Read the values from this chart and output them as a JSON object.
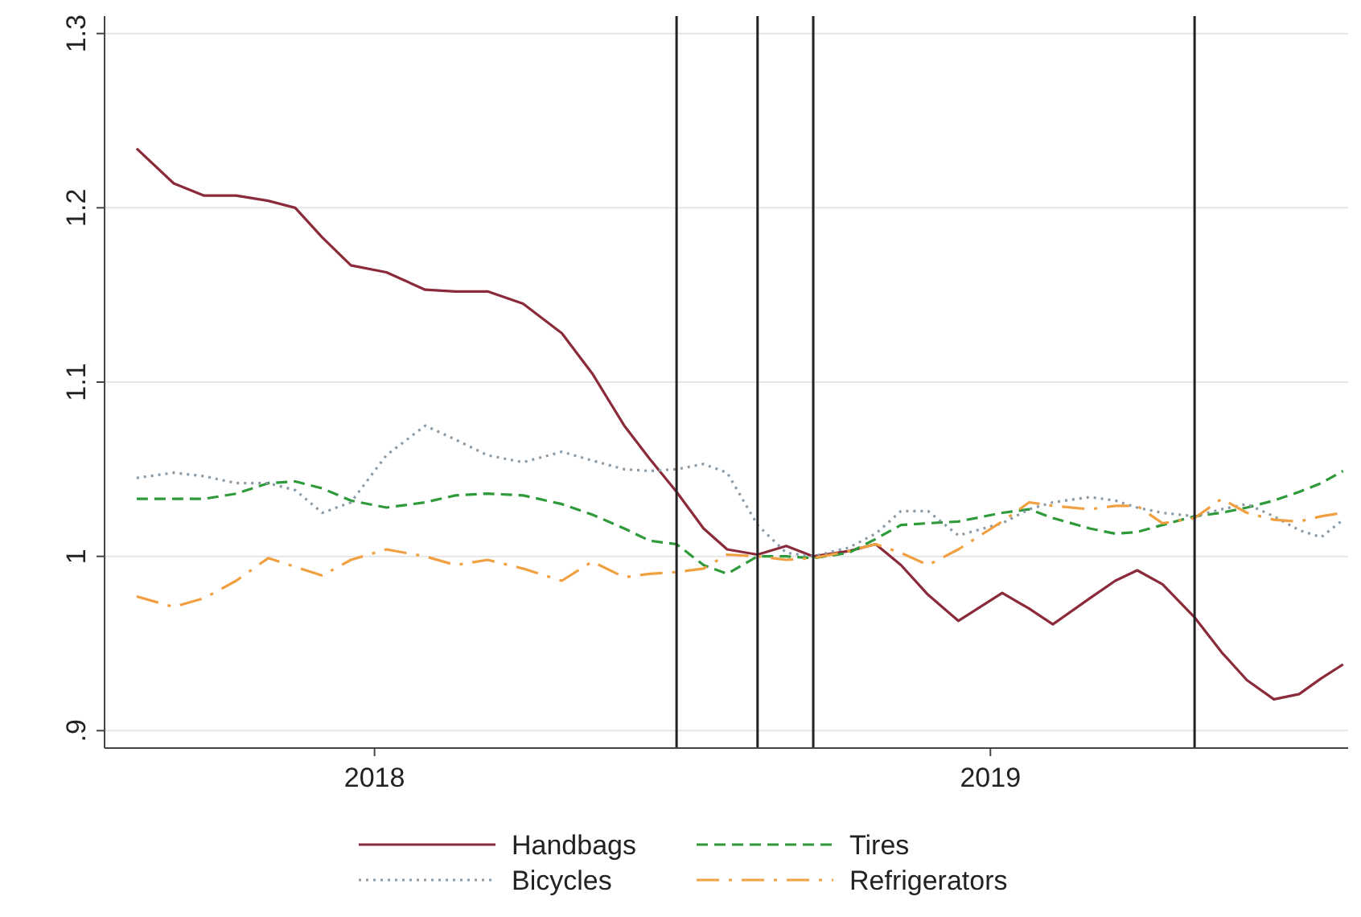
{
  "chart_data": {
    "type": "line",
    "x": [
      "2017-08-13",
      "2017-09-04",
      "2017-09-22",
      "2017-10-11",
      "2017-10-30",
      "2017-11-15",
      "2017-12-01",
      "2017-12-18",
      "2018-01-08",
      "2018-01-31",
      "2018-02-18",
      "2018-03-09",
      "2018-03-30",
      "2018-04-22",
      "2018-05-10",
      "2018-05-29",
      "2018-06-13",
      "2018-06-29",
      "2018-07-15",
      "2018-07-29",
      "2018-08-16",
      "2018-09-02",
      "2018-09-18",
      "2018-10-09",
      "2018-10-25",
      "2018-11-09",
      "2018-11-25",
      "2018-12-13",
      "2019-01-08",
      "2019-01-24",
      "2019-02-07",
      "2019-03-01",
      "2019-03-16",
      "2019-03-29",
      "2019-04-13",
      "2019-05-02",
      "2019-05-18",
      "2019-06-02",
      "2019-06-18",
      "2019-07-03",
      "2019-07-16",
      "2019-07-29"
    ],
    "series": [
      {
        "name": "Handbags",
        "color": "#8b2a3a",
        "line_style": "solid",
        "values": [
          1.234,
          1.214,
          1.207,
          1.207,
          1.204,
          1.2,
          1.183,
          1.167,
          1.163,
          1.153,
          1.152,
          1.152,
          1.145,
          1.128,
          1.105,
          1.075,
          1.056,
          1.037,
          1.016,
          1.004,
          1.001,
          1.006,
          1.0,
          1.003,
          1.007,
          0.995,
          0.978,
          0.963,
          0.979,
          0.97,
          0.961,
          0.976,
          0.986,
          0.992,
          0.984,
          0.965,
          0.945,
          0.929,
          0.918,
          0.921,
          0.93,
          0.938
        ]
      },
      {
        "name": "Tires",
        "color": "#2e9a3a",
        "line_style": "dashed",
        "values": [
          1.033,
          1.033,
          1.033,
          1.036,
          1.042,
          1.043,
          1.039,
          1.032,
          1.028,
          1.031,
          1.035,
          1.036,
          1.035,
          1.03,
          1.024,
          1.016,
          1.009,
          1.007,
          0.995,
          0.99,
          1.0,
          1.0,
          0.999,
          1.002,
          1.01,
          1.018,
          1.019,
          1.02,
          1.025,
          1.027,
          1.022,
          1.016,
          1.013,
          1.014,
          1.018,
          1.023,
          1.025,
          1.028,
          1.032,
          1.037,
          1.042,
          1.049
        ]
      },
      {
        "name": "Bicycles",
        "color": "#8a9aa6",
        "line_style": "dotted",
        "values": [
          1.045,
          1.048,
          1.046,
          1.042,
          1.042,
          1.038,
          1.025,
          1.031,
          1.058,
          1.075,
          1.067,
          1.058,
          1.054,
          1.06,
          1.055,
          1.05,
          1.049,
          1.05,
          1.053,
          1.048,
          1.018,
          1.002,
          1.0,
          1.005,
          1.013,
          1.026,
          1.026,
          1.012,
          1.019,
          1.027,
          1.031,
          1.034,
          1.032,
          1.028,
          1.025,
          1.023,
          1.027,
          1.03,
          1.023,
          1.015,
          1.011,
          1.021
        ]
      },
      {
        "name": "Refrigerators",
        "color": "#f0a040",
        "line_style": "dashdot",
        "values": [
          0.977,
          0.971,
          0.976,
          0.986,
          0.999,
          0.994,
          0.989,
          0.998,
          1.004,
          1.0,
          0.995,
          0.998,
          0.993,
          0.986,
          0.997,
          0.988,
          0.99,
          0.991,
          0.993,
          1.001,
          1.0,
          0.998,
          0.999,
          1.003,
          1.007,
          1.002,
          0.995,
          1.004,
          1.02,
          1.031,
          1.029,
          1.027,
          1.029,
          1.029,
          1.019,
          1.022,
          1.033,
          1.025,
          1.021,
          1.02,
          1.023,
          1.025
        ]
      }
    ],
    "xlim": [
      "2017-07-25",
      "2019-08-01"
    ],
    "xticks": [
      {
        "value": "2018-01-01",
        "label": "2018"
      },
      {
        "value": "2019-01-01",
        "label": "2019"
      }
    ],
    "ylim": [
      0.89,
      1.31
    ],
    "yticks": [
      {
        "value": 0.9,
        "label": ".9"
      },
      1,
      1.1,
      1.2,
      1.3
    ],
    "ref_lines": [
      {
        "axis": "x",
        "value": "2018-06-29",
        "color": "#222222"
      },
      {
        "axis": "x",
        "value": "2018-08-16",
        "color": "#222222"
      },
      {
        "axis": "x",
        "value": "2018-09-18",
        "color": "#222222"
      },
      {
        "axis": "x",
        "value": "2019-05-02",
        "color": "#222222"
      }
    ],
    "grid": "y",
    "legend": "bottom"
  }
}
